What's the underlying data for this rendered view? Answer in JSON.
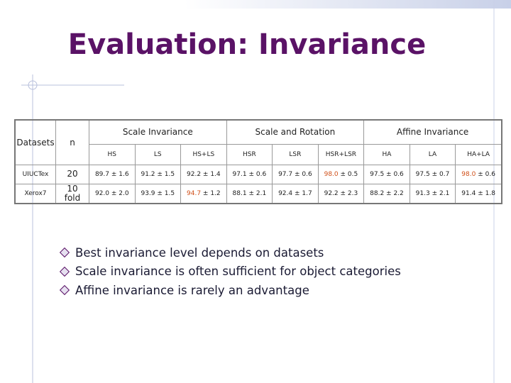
{
  "title": "Evaluation: Invariance",
  "table": {
    "dataset_header": "Datasets",
    "n_header": "n",
    "groups": [
      {
        "label": "Scale Invariance",
        "columns": [
          "HS",
          "LS",
          "HS+LS"
        ]
      },
      {
        "label": "Scale and Rotation",
        "columns": [
          "HSR",
          "LSR",
          "HSR+LSR"
        ]
      },
      {
        "label": "Affine Invariance",
        "columns": [
          "HA",
          "LA",
          "HA+LA"
        ]
      }
    ],
    "rows": [
      {
        "dataset": "UIUCTex",
        "n": "20",
        "cells": [
          [
            "89.7",
            "± 1.6"
          ],
          [
            "91.2",
            "± 1.5"
          ],
          [
            "92.2",
            "± 1.4"
          ],
          [
            "97.1",
            "± 0.6"
          ],
          [
            "97.7",
            "± 0.6"
          ],
          [
            "98.0",
            "± 0.5"
          ],
          [
            "97.5",
            "± 0.6"
          ],
          [
            "97.5",
            "± 0.7"
          ],
          [
            "98.0",
            "± 0.6"
          ]
        ],
        "best": [
          5,
          8
        ]
      },
      {
        "dataset": "Xerox7",
        "n": "10 fold",
        "cells": [
          [
            "92.0",
            "± 2.0"
          ],
          [
            "93.9",
            "± 1.5"
          ],
          [
            "94.7",
            "± 1.2"
          ],
          [
            "88.1",
            "± 2.1"
          ],
          [
            "92.4",
            "± 1.7"
          ],
          [
            "92.2",
            "± 2.3"
          ],
          [
            "88.2",
            "± 2.2"
          ],
          [
            "91.3",
            "± 2.1"
          ],
          [
            "91.4",
            "± 1.8"
          ]
        ],
        "best": [
          2
        ]
      }
    ]
  },
  "bullets": [
    "Best invariance level depends on datasets",
    "Scale invariance is often sufficient for object categories",
    "Affine invariance is rarely an advantage"
  ]
}
